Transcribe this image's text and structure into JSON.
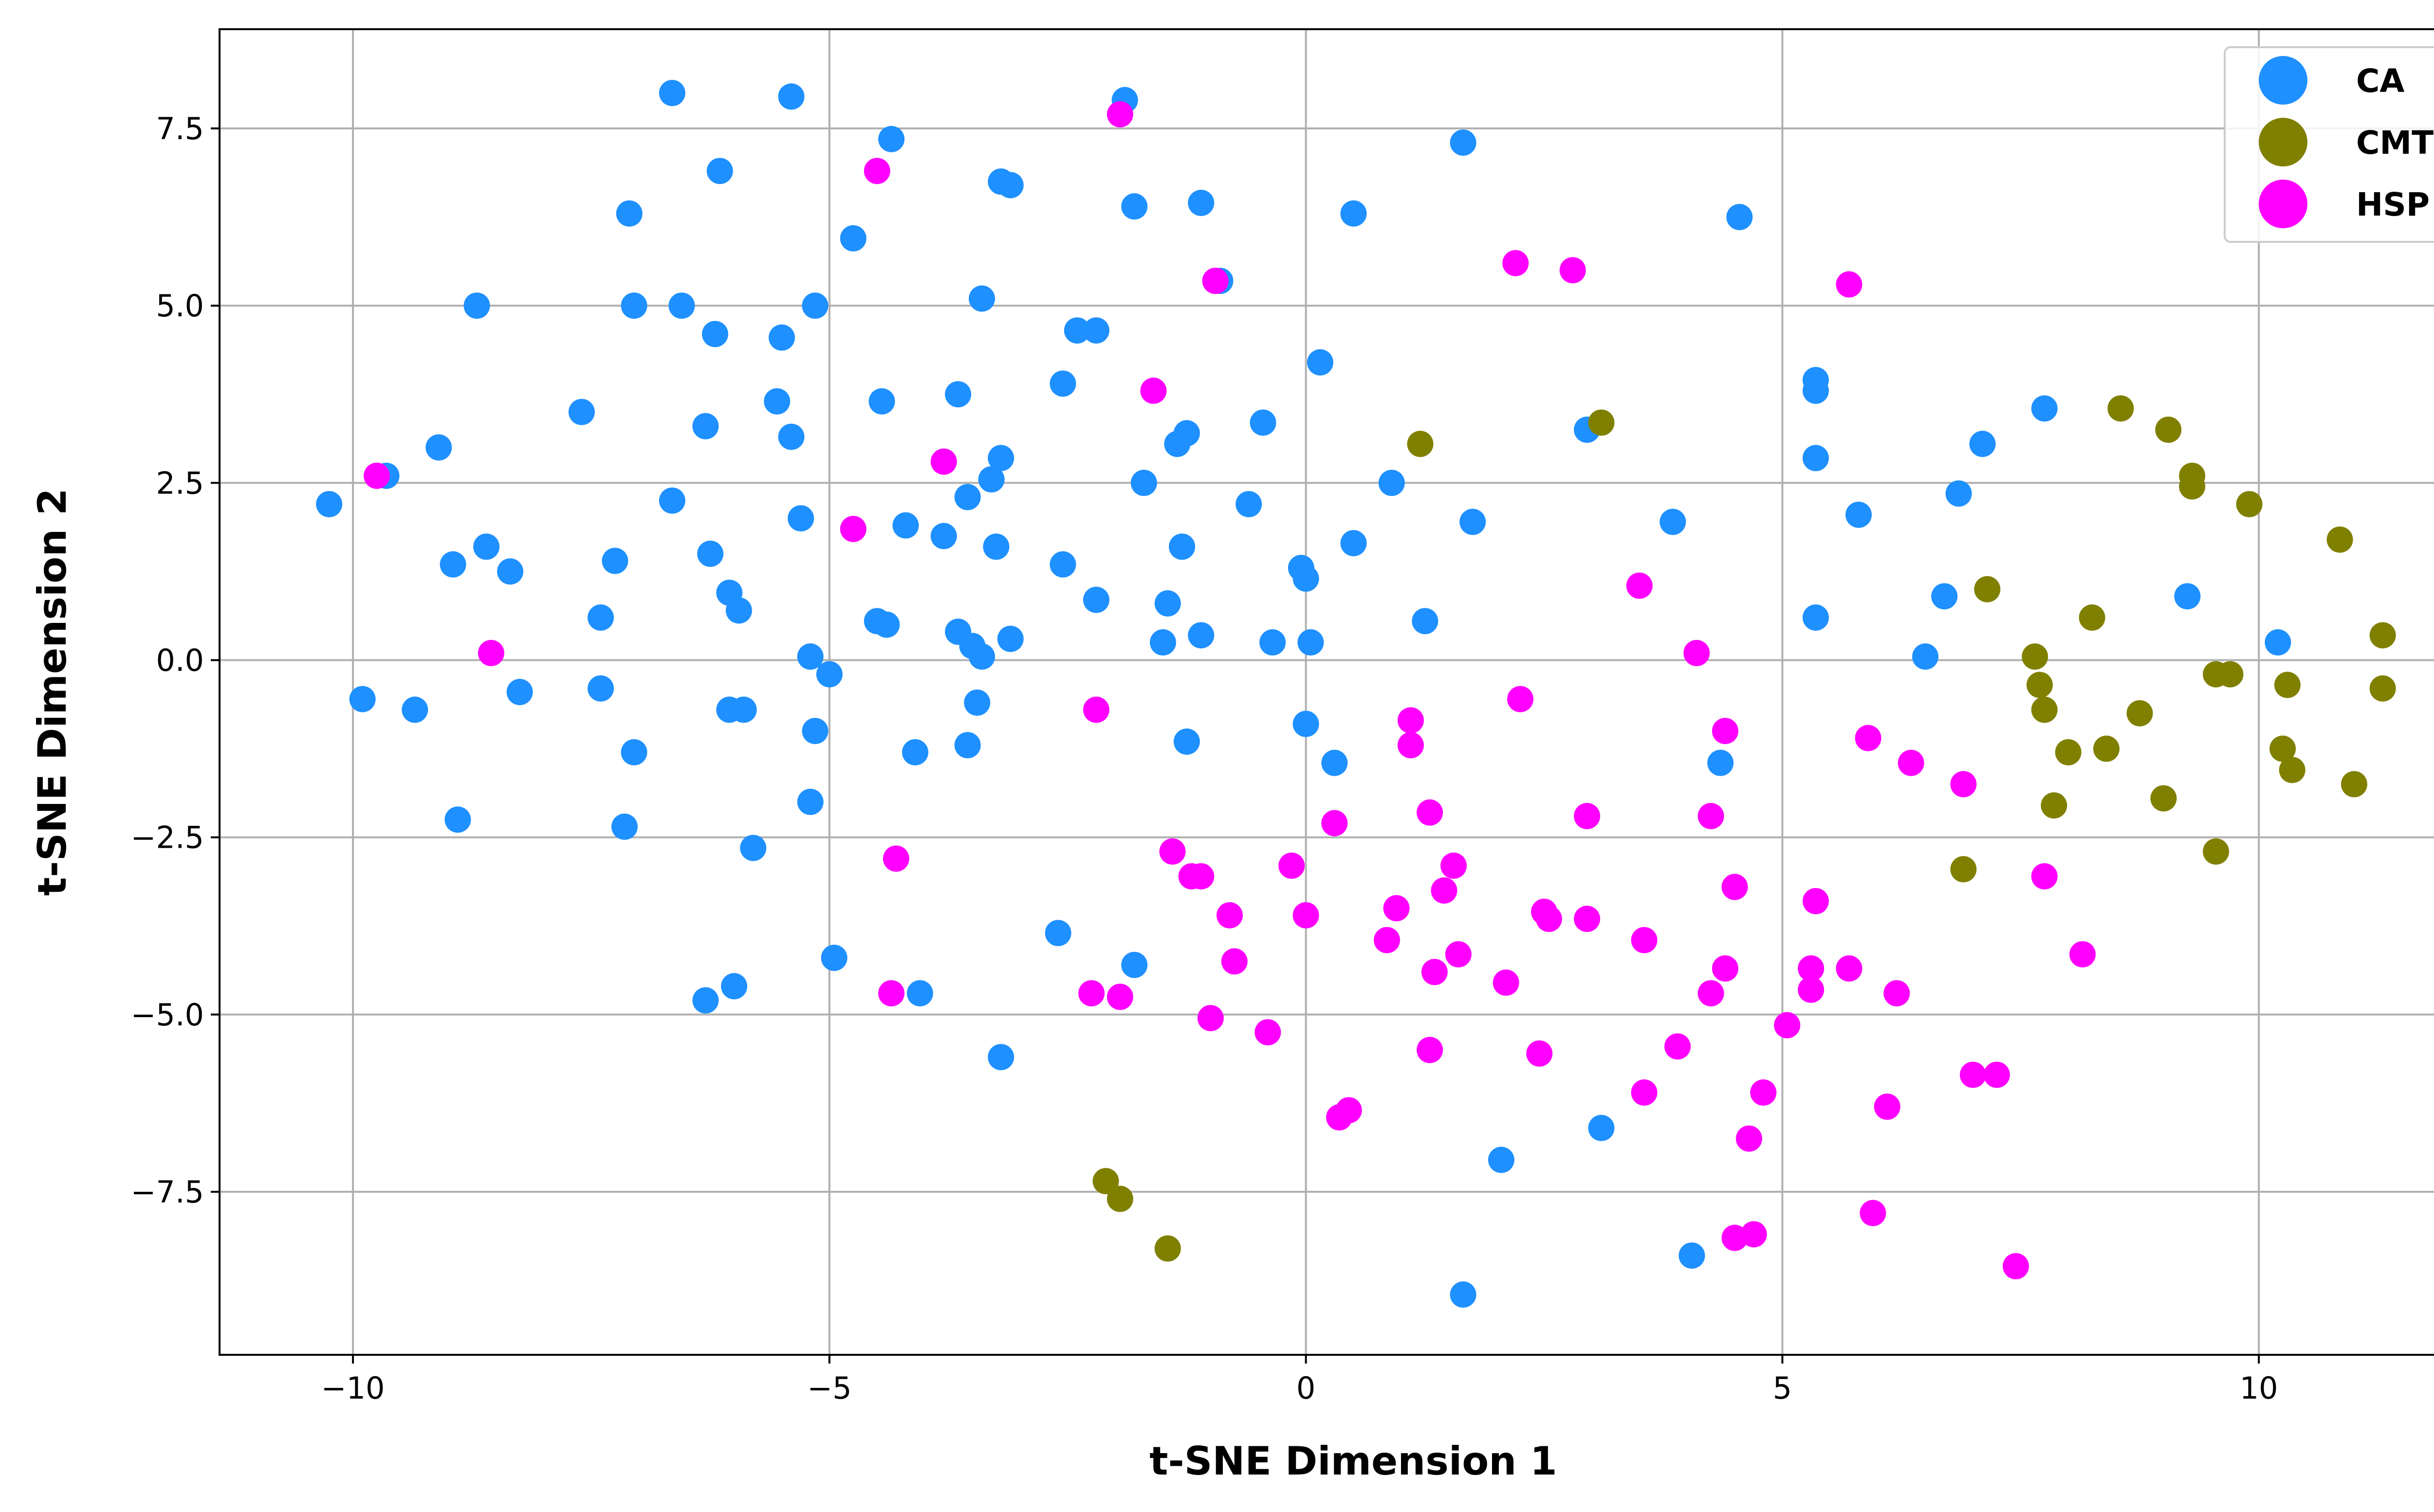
{
  "chart_data": {
    "type": "scatter",
    "title": "",
    "xlabel": "t-SNE Dimension 1",
    "ylabel": "t-SNE Dimension 2",
    "xlim": [
      -11.4,
      12.4
    ],
    "ylim": [
      -9.8,
      8.9
    ],
    "x_ticks": [
      -10,
      -5,
      0,
      5,
      10
    ],
    "x_tick_labels": [
      "−10",
      "−5",
      "0",
      "5",
      "10"
    ],
    "y_ticks": [
      -7.5,
      -5.0,
      -2.5,
      0.0,
      2.5,
      5.0,
      7.5
    ],
    "y_tick_labels": [
      "−7.5",
      "−5.0",
      "−2.5",
      "0.0",
      "2.5",
      "5.0",
      "7.5"
    ],
    "grid": true,
    "legend_position": "top-right",
    "series": [
      {
        "name": "CA",
        "color": "#1E90FF",
        "points": [
          [
            -10.25,
            2.2
          ],
          [
            -9.9,
            -0.55
          ],
          [
            -9.65,
            2.6
          ],
          [
            -9.35,
            -0.7
          ],
          [
            -9.1,
            3.0
          ],
          [
            -8.95,
            1.35
          ],
          [
            -8.9,
            -2.25
          ],
          [
            -8.7,
            5.0
          ],
          [
            -8.6,
            1.6
          ],
          [
            -8.35,
            1.25
          ],
          [
            -8.25,
            -0.45
          ],
          [
            -7.6,
            3.5
          ],
          [
            -7.4,
            0.6
          ],
          [
            -7.4,
            -0.4
          ],
          [
            -7.25,
            1.4
          ],
          [
            -7.15,
            -2.35
          ],
          [
            -7.1,
            6.3
          ],
          [
            -7.05,
            5.0
          ],
          [
            -7.05,
            -1.3
          ],
          [
            -6.65,
            2.25
          ],
          [
            -6.65,
            8.0
          ],
          [
            -6.55,
            5.0
          ],
          [
            -6.3,
            3.3
          ],
          [
            -6.3,
            -4.8
          ],
          [
            -6.25,
            1.5
          ],
          [
            -6.2,
            4.6
          ],
          [
            -6.15,
            6.9
          ],
          [
            -6.05,
            0.95
          ],
          [
            -6.05,
            -0.7
          ],
          [
            -6.0,
            -4.6
          ],
          [
            -5.95,
            0.7
          ],
          [
            -5.9,
            -0.7
          ],
          [
            -5.8,
            -2.65
          ],
          [
            -5.55,
            3.65
          ],
          [
            -5.5,
            4.55
          ],
          [
            -5.4,
            3.15
          ],
          [
            -5.4,
            7.95
          ],
          [
            -5.3,
            2.0
          ],
          [
            -5.2,
            0.05
          ],
          [
            -5.2,
            -2.0
          ],
          [
            -5.15,
            5.0
          ],
          [
            -5.15,
            -1.0
          ],
          [
            -5.0,
            -0.2
          ],
          [
            -4.95,
            -4.2
          ],
          [
            -4.75,
            5.95
          ],
          [
            -4.5,
            0.55
          ],
          [
            -4.45,
            3.65
          ],
          [
            -4.4,
            0.5
          ],
          [
            -4.35,
            7.35
          ],
          [
            -4.2,
            1.9
          ],
          [
            -4.1,
            -1.3
          ],
          [
            -4.05,
            -4.7
          ],
          [
            -3.8,
            1.75
          ],
          [
            -3.65,
            0.4
          ],
          [
            -3.65,
            3.75
          ],
          [
            -3.55,
            2.3
          ],
          [
            -3.55,
            -1.2
          ],
          [
            -3.5,
            0.2
          ],
          [
            -3.45,
            -0.6
          ],
          [
            -3.4,
            0.05
          ],
          [
            -3.4,
            5.1
          ],
          [
            -3.3,
            2.55
          ],
          [
            -3.25,
            1.6
          ],
          [
            -3.2,
            6.75
          ],
          [
            -3.2,
            2.85
          ],
          [
            -3.2,
            -5.6
          ],
          [
            -3.1,
            6.7
          ],
          [
            -3.1,
            0.3
          ],
          [
            -2.6,
            -3.85
          ],
          [
            -2.55,
            3.9
          ],
          [
            -2.55,
            1.35
          ],
          [
            -2.4,
            4.65
          ],
          [
            -2.2,
            4.65
          ],
          [
            -2.2,
            0.85
          ],
          [
            -1.9,
            7.9
          ],
          [
            -1.8,
            6.4
          ],
          [
            -1.8,
            -4.3
          ],
          [
            -1.7,
            2.5
          ],
          [
            -1.5,
            0.25
          ],
          [
            -1.45,
            0.8
          ],
          [
            -1.35,
            3.05
          ],
          [
            -1.3,
            1.6
          ],
          [
            -1.25,
            -1.15
          ],
          [
            -1.25,
            3.2
          ],
          [
            -1.1,
            6.45
          ],
          [
            -1.1,
            0.35
          ],
          [
            -0.9,
            5.35
          ],
          [
            -0.6,
            2.2
          ],
          [
            -0.45,
            3.35
          ],
          [
            -0.35,
            0.25
          ],
          [
            -0.05,
            1.3
          ],
          [
            0.0,
            1.15
          ],
          [
            0.0,
            -0.9
          ],
          [
            0.05,
            0.25
          ],
          [
            0.15,
            4.2
          ],
          [
            0.3,
            -1.45
          ],
          [
            0.5,
            6.3
          ],
          [
            0.5,
            1.65
          ],
          [
            0.9,
            2.5
          ],
          [
            1.25,
            0.55
          ],
          [
            1.65,
            7.3
          ],
          [
            1.65,
            -8.95
          ],
          [
            1.75,
            1.95
          ],
          [
            2.05,
            -7.05
          ],
          [
            2.95,
            3.25
          ],
          [
            3.1,
            -6.6
          ],
          [
            3.85,
            1.95
          ],
          [
            4.05,
            -8.4
          ],
          [
            4.35,
            -1.45
          ],
          [
            4.55,
            6.25
          ],
          [
            5.35,
            3.95
          ],
          [
            5.35,
            3.8
          ],
          [
            5.35,
            2.85
          ],
          [
            5.35,
            0.6
          ],
          [
            5.8,
            2.05
          ],
          [
            6.5,
            0.05
          ],
          [
            6.7,
            0.9
          ],
          [
            6.85,
            2.35
          ],
          [
            7.1,
            3.05
          ],
          [
            7.75,
            3.55
          ],
          [
            9.25,
            0.9
          ],
          [
            10.2,
            0.25
          ]
        ]
      },
      {
        "name": "CMT",
        "color": "#808000",
        "points": [
          [
            -2.1,
            -7.35
          ],
          [
            -1.95,
            -7.6
          ],
          [
            -1.45,
            -8.3
          ],
          [
            1.2,
            3.05
          ],
          [
            3.1,
            3.35
          ],
          [
            6.9,
            -2.95
          ],
          [
            7.15,
            1.0
          ],
          [
            7.65,
            0.05
          ],
          [
            7.7,
            -0.35
          ],
          [
            7.75,
            -0.7
          ],
          [
            7.85,
            -2.05
          ],
          [
            8.0,
            -1.3
          ],
          [
            8.25,
            0.6
          ],
          [
            8.4,
            -1.25
          ],
          [
            8.55,
            3.55
          ],
          [
            8.75,
            -0.75
          ],
          [
            9.0,
            -1.95
          ],
          [
            9.05,
            3.25
          ],
          [
            9.3,
            2.6
          ],
          [
            9.3,
            2.45
          ],
          [
            9.55,
            -2.7
          ],
          [
            9.55,
            -0.2
          ],
          [
            9.7,
            -0.2
          ],
          [
            9.9,
            2.2
          ],
          [
            10.25,
            -1.25
          ],
          [
            10.3,
            -0.35
          ],
          [
            10.35,
            -1.55
          ],
          [
            10.85,
            1.7
          ],
          [
            11.0,
            -1.75
          ],
          [
            11.3,
            0.35
          ],
          [
            11.3,
            -0.4
          ]
        ]
      },
      {
        "name": "HSP",
        "color": "#FF00FF",
        "points": [
          [
            -9.75,
            2.6
          ],
          [
            -8.55,
            0.1
          ],
          [
            -4.75,
            1.85
          ],
          [
            -4.5,
            6.9
          ],
          [
            -4.35,
            -4.7
          ],
          [
            -4.3,
            -2.8
          ],
          [
            -3.8,
            2.8
          ],
          [
            -2.2,
            -0.7
          ],
          [
            -2.25,
            -4.7
          ],
          [
            -1.95,
            -4.75
          ],
          [
            -1.95,
            7.7
          ],
          [
            -1.6,
            3.8
          ],
          [
            -1.4,
            -2.7
          ],
          [
            -1.2,
            -3.05
          ],
          [
            -1.1,
            -3.05
          ],
          [
            -1.0,
            -5.05
          ],
          [
            -0.95,
            5.35
          ],
          [
            -0.8,
            -3.6
          ],
          [
            -0.75,
            -4.25
          ],
          [
            -0.4,
            -5.25
          ],
          [
            -0.15,
            -2.9
          ],
          [
            0.0,
            -3.6
          ],
          [
            0.3,
            -2.3
          ],
          [
            0.35,
            -6.45
          ],
          [
            0.45,
            -6.35
          ],
          [
            0.85,
            -3.95
          ],
          [
            0.95,
            -3.5
          ],
          [
            1.1,
            -0.85
          ],
          [
            1.1,
            -1.2
          ],
          [
            1.3,
            -2.15
          ],
          [
            1.3,
            -5.5
          ],
          [
            1.35,
            -4.4
          ],
          [
            1.45,
            -3.25
          ],
          [
            1.55,
            -2.9
          ],
          [
            1.6,
            -4.15
          ],
          [
            2.1,
            -4.55
          ],
          [
            2.2,
            5.6
          ],
          [
            2.25,
            -0.55
          ],
          [
            2.45,
            -5.55
          ],
          [
            2.5,
            -3.55
          ],
          [
            2.55,
            -3.65
          ],
          [
            2.8,
            5.5
          ],
          [
            2.95,
            -3.65
          ],
          [
            2.95,
            -2.2
          ],
          [
            3.5,
            1.05
          ],
          [
            3.55,
            -3.95
          ],
          [
            3.55,
            -6.1
          ],
          [
            3.9,
            -5.45
          ],
          [
            4.1,
            0.1
          ],
          [
            4.25,
            -2.2
          ],
          [
            4.25,
            -4.7
          ],
          [
            4.4,
            -1.0
          ],
          [
            4.4,
            -4.35
          ],
          [
            4.5,
            -3.2
          ],
          [
            4.5,
            -8.15
          ],
          [
            4.65,
            -6.75
          ],
          [
            4.7,
            -8.1
          ],
          [
            4.8,
            -6.1
          ],
          [
            5.05,
            -5.15
          ],
          [
            5.3,
            -4.35
          ],
          [
            5.3,
            -4.65
          ],
          [
            5.35,
            -3.4
          ],
          [
            5.7,
            -4.35
          ],
          [
            5.7,
            5.3
          ],
          [
            5.9,
            -1.1
          ],
          [
            5.95,
            -7.8
          ],
          [
            6.1,
            -6.3
          ],
          [
            6.2,
            -4.7
          ],
          [
            6.35,
            -1.45
          ],
          [
            6.9,
            -1.75
          ],
          [
            7.0,
            -5.85
          ],
          [
            7.25,
            -5.85
          ],
          [
            7.45,
            -8.55
          ],
          [
            7.75,
            -3.05
          ],
          [
            8.15,
            -4.15
          ]
        ]
      }
    ]
  }
}
